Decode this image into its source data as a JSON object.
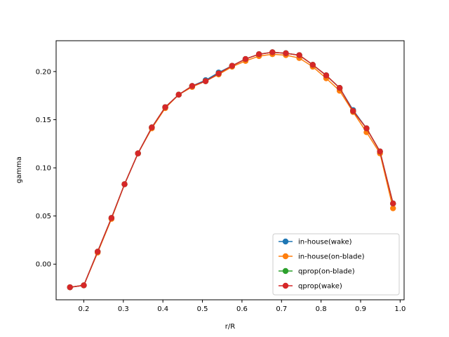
{
  "chart_data": {
    "type": "line",
    "title": "",
    "xlabel": "r/R",
    "ylabel": "gamma",
    "xlim": [
      0.13,
      1.01
    ],
    "ylim": [
      -0.037,
      0.232
    ],
    "xticks": [
      0.2,
      0.3,
      0.4,
      0.5,
      0.6,
      0.7,
      0.8,
      0.9,
      1.0
    ],
    "xtick_labels": [
      "0.2",
      "0.3",
      "0.4",
      "0.5",
      "0.6",
      "0.7",
      "0.8",
      "0.9",
      "1.0"
    ],
    "yticks": [
      0.0,
      0.05,
      0.1,
      0.15,
      0.2
    ],
    "ytick_labels": [
      "0.00",
      "0.05",
      "0.10",
      "0.15",
      "0.20"
    ],
    "grid": false,
    "legend_position": "lower-right",
    "x": [
      0.165,
      0.2,
      0.235,
      0.27,
      0.303,
      0.337,
      0.372,
      0.406,
      0.44,
      0.474,
      0.508,
      0.541,
      0.575,
      0.609,
      0.643,
      0.677,
      0.711,
      0.745,
      0.779,
      0.813,
      0.847,
      0.881,
      0.915,
      0.949,
      0.982
    ],
    "series": [
      {
        "name": "in-house(wake)",
        "color": "#1f77b4",
        "values": [
          -0.024,
          -0.022,
          0.013,
          0.048,
          0.083,
          0.115,
          0.142,
          0.163,
          0.176,
          0.185,
          0.191,
          0.199,
          0.206,
          0.213,
          0.218,
          0.22,
          0.219,
          0.217,
          0.207,
          0.196,
          0.183,
          0.16,
          0.141,
          0.117,
          0.063
        ]
      },
      {
        "name": "in-house(on-blade)",
        "color": "#ff7f0e",
        "values": [
          -0.024,
          -0.022,
          0.012,
          0.047,
          0.083,
          0.115,
          0.141,
          0.162,
          0.176,
          0.184,
          0.19,
          0.197,
          0.205,
          0.211,
          0.216,
          0.218,
          0.217,
          0.214,
          0.205,
          0.193,
          0.18,
          0.158,
          0.137,
          0.115,
          0.058
        ]
      },
      {
        "name": "qprop(on-blade)",
        "color": "#2ca02c",
        "values": [
          -0.024,
          -0.022,
          0.013,
          0.048,
          0.083,
          0.115,
          0.142,
          0.163,
          0.176,
          0.185,
          0.19,
          0.198,
          0.206,
          0.213,
          0.218,
          0.22,
          0.219,
          0.217,
          0.207,
          0.196,
          0.183,
          0.159,
          0.141,
          0.117,
          0.063
        ]
      },
      {
        "name": "qprop(wake)",
        "color": "#d62728",
        "values": [
          -0.024,
          -0.022,
          0.013,
          0.048,
          0.083,
          0.115,
          0.142,
          0.163,
          0.176,
          0.185,
          0.19,
          0.198,
          0.206,
          0.213,
          0.218,
          0.22,
          0.219,
          0.217,
          0.207,
          0.196,
          0.183,
          0.159,
          0.141,
          0.117,
          0.063
        ]
      }
    ]
  }
}
